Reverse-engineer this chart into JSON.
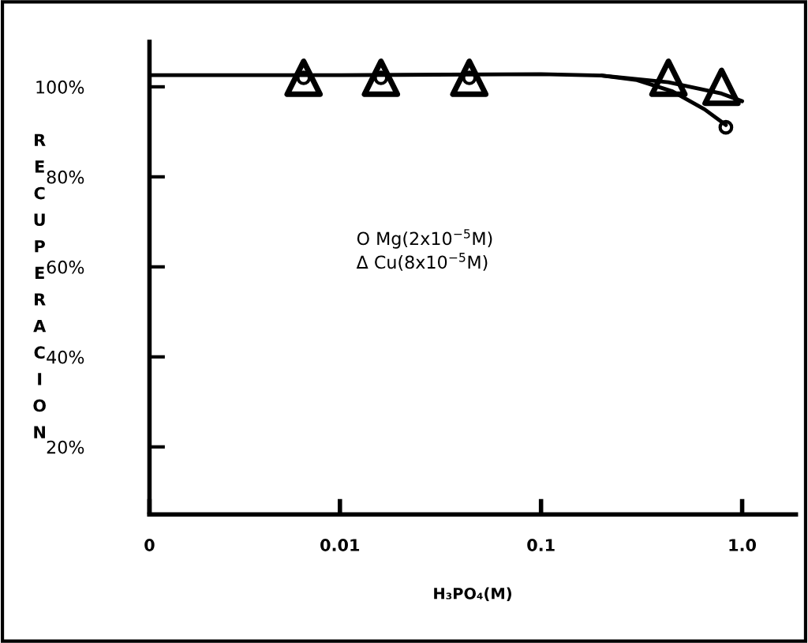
{
  "chart_data": {
    "type": "scatter",
    "xlabel": "H₃PO₄(M)",
    "ylabel": "RECUPERACION",
    "log": "x",
    "xlim": [
      0.00113,
      1.85
    ],
    "xticks": [
      {
        "value": 0.00113,
        "label": "0"
      },
      0.01,
      0.1,
      {
        "value": 1.0,
        "label": "1.0"
      }
    ],
    "ylim": [
      5,
      110
    ],
    "yticks": [
      {
        "value": 20,
        "label": "20%"
      },
      {
        "value": 40,
        "label": "40%"
      },
      {
        "value": 60,
        "label": "60%"
      },
      {
        "value": 80,
        "label": "80%"
      },
      {
        "value": 100,
        "label": "100%"
      }
    ],
    "grid": false,
    "series": [
      {
        "type": "line",
        "color": "#000000",
        "marker": "none",
        "line_style": "solid",
        "x": [
          0.00113,
          0.01,
          0.1,
          0.2,
          0.43,
          0.79,
          1.0
        ],
        "values": [
          102.6,
          102.6,
          102.8,
          102.5,
          101,
          98.5,
          96.8
        ]
      },
      {
        "type": "line",
        "color": "#000000",
        "marker": "none",
        "line_style": "solid",
        "x": [
          0.2,
          0.3,
          0.45,
          0.65,
          0.83
        ],
        "values": [
          102.5,
          101.5,
          99,
          95,
          91.5
        ]
      },
      {
        "color": "#000000",
        "marker": "circle",
        "x": [
          0.0066,
          0.016,
          0.044,
          0.83
        ],
        "values": [
          102,
          102,
          102,
          91
        ]
      },
      {
        "color": "#000000",
        "marker": "triangle",
        "x": [
          0.0066,
          0.016,
          0.044,
          0.43,
          0.79
        ],
        "values": [
          102,
          102,
          102,
          102,
          100
        ]
      }
    ],
    "annotations": [
      "O Mg(2x10$^{−5}$M)",
      "Δ Cu(8x10$^{−5}$M)"
    ]
  }
}
